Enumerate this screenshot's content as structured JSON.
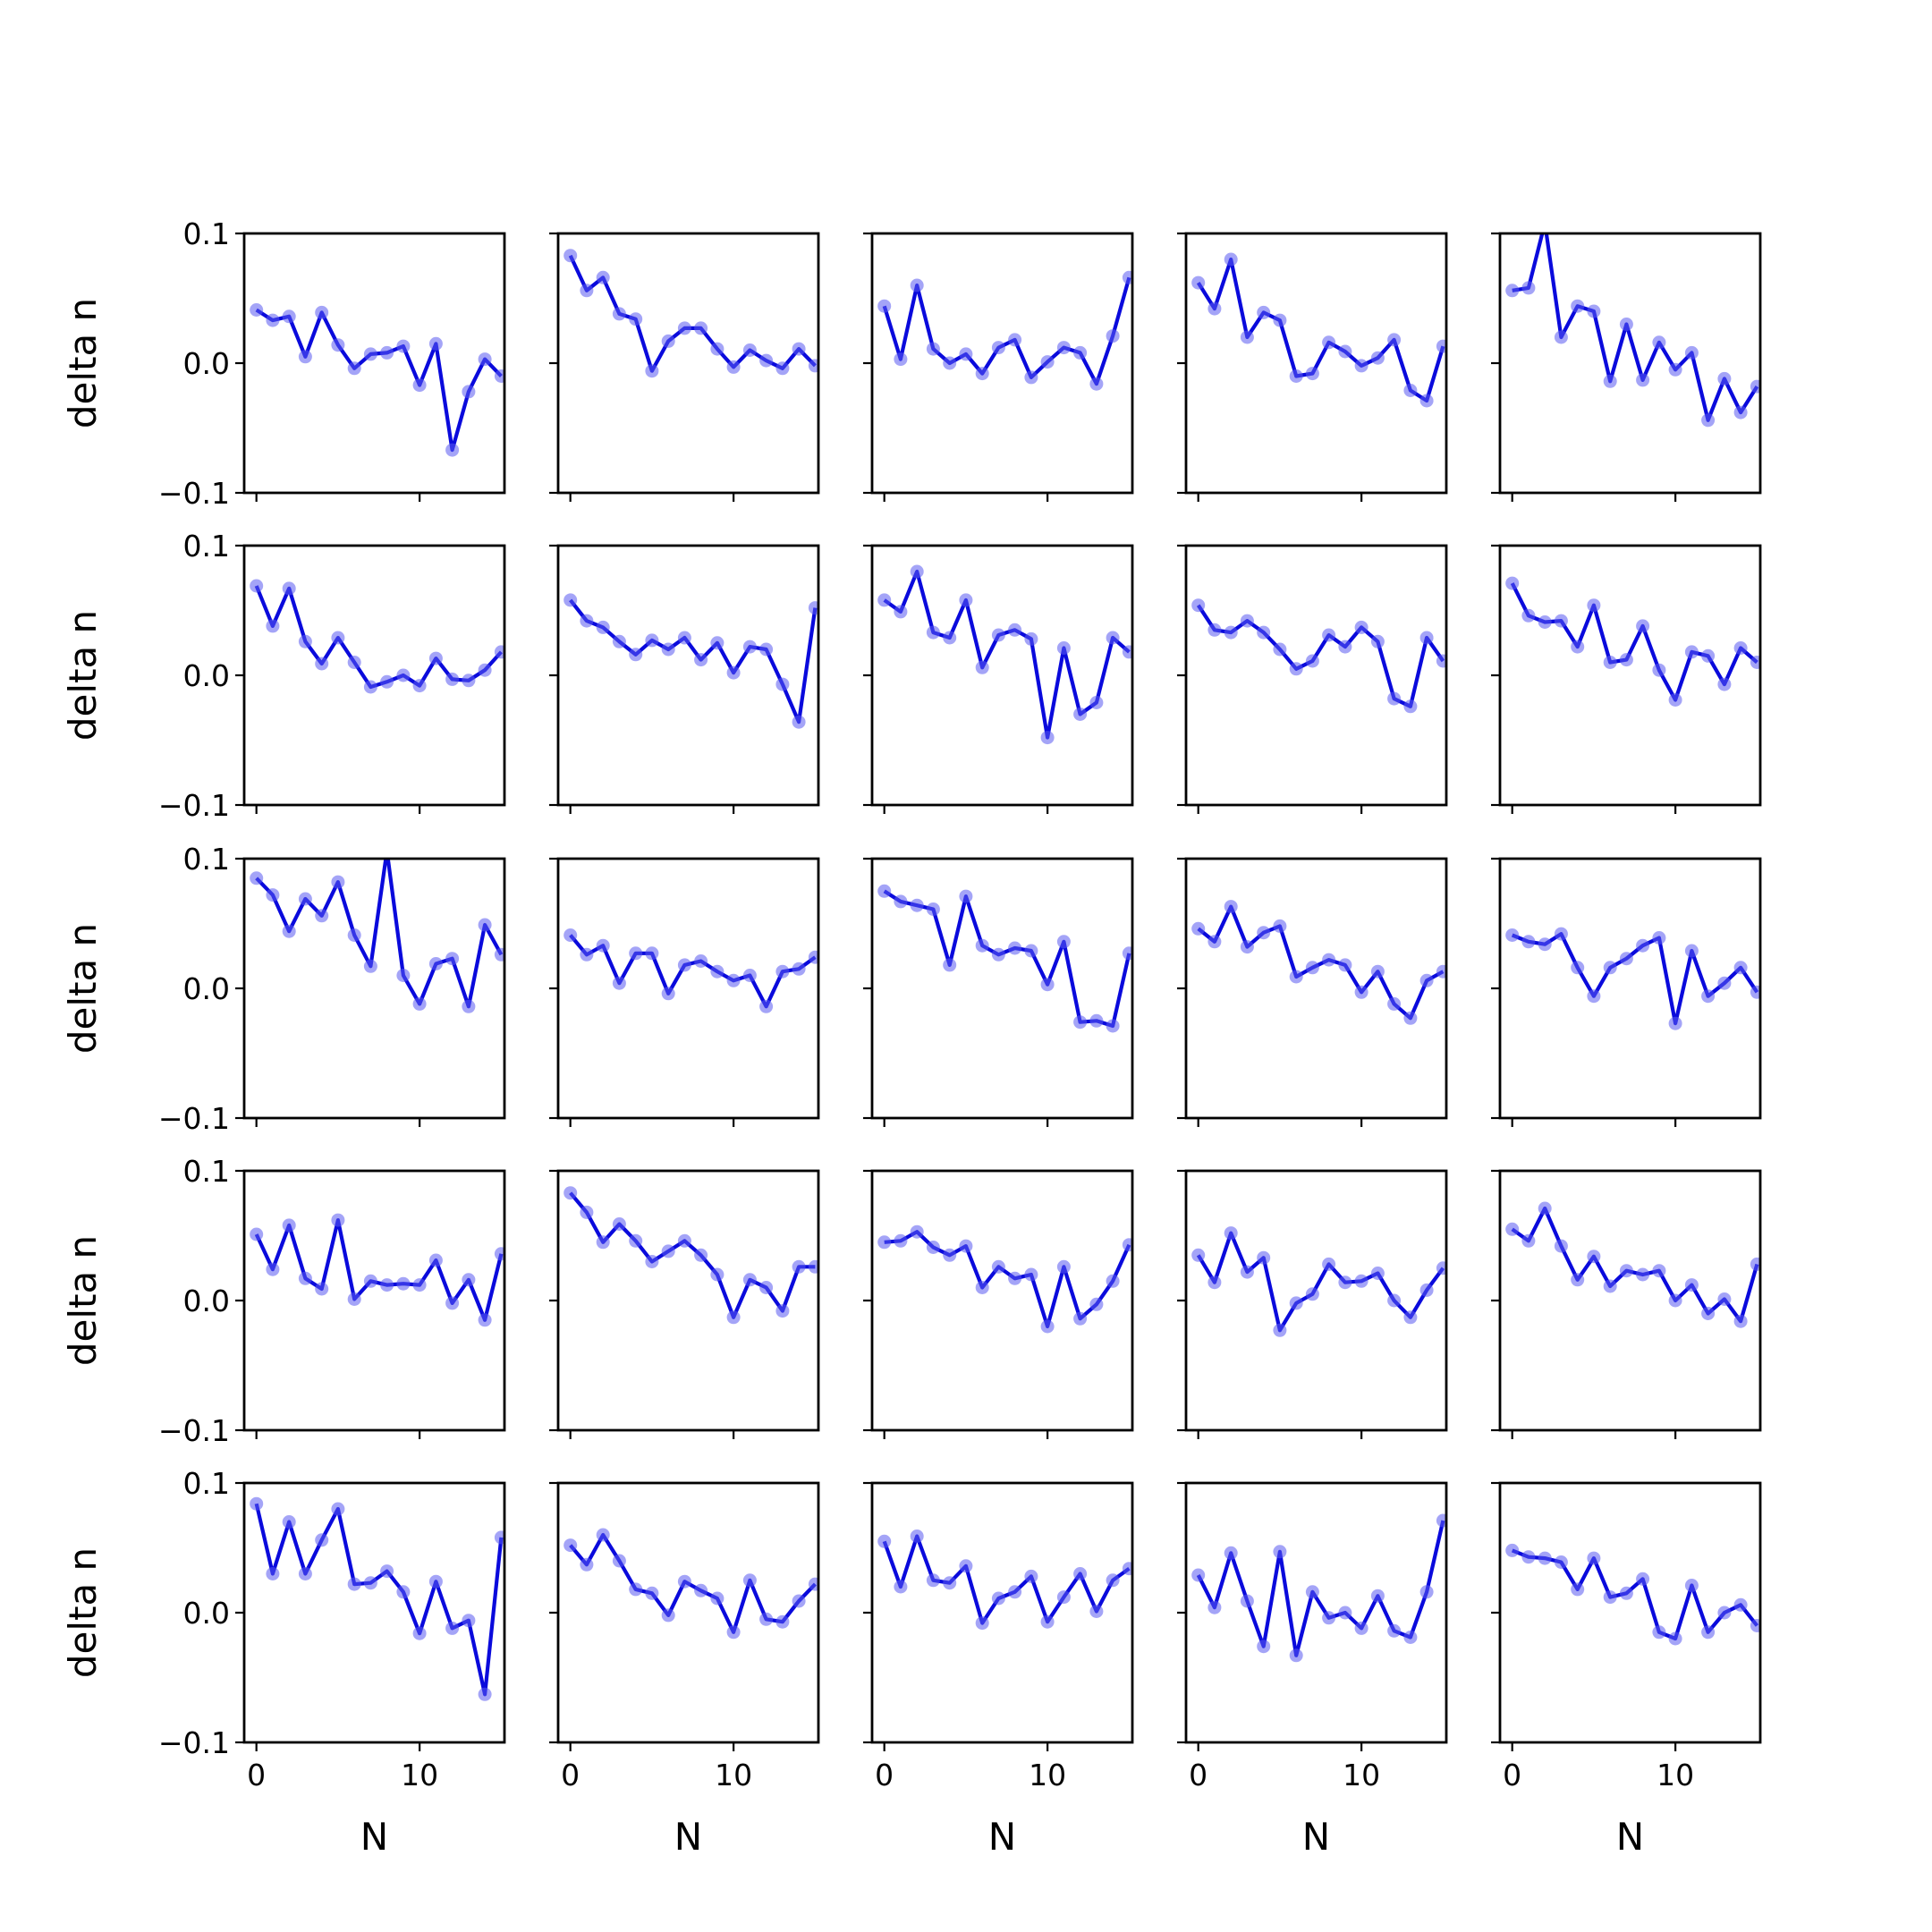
{
  "chart_data": {
    "type": "line",
    "layout": {
      "rows": 5,
      "cols": 5
    },
    "xlabel": "N",
    "ylabel": "delta n",
    "x": [
      0,
      1,
      2,
      3,
      4,
      5,
      6,
      7,
      8,
      9,
      10,
      11,
      12,
      13,
      14,
      15
    ],
    "xlim": [
      -0.75,
      15.2
    ],
    "ylim": [
      -0.1,
      0.1
    ],
    "xticks": [
      0,
      10
    ],
    "yticks": [
      -0.1,
      0.0,
      0.1
    ],
    "yticklabels": [
      "−0.1",
      "0.0",
      "0.1"
    ],
    "xticklabels": [
      "0",
      "10"
    ],
    "line_color": "#0a0adc",
    "marker_color": "#5a5af0",
    "panels": [
      {
        "values": [
          0.041,
          0.033,
          0.036,
          0.005,
          0.039,
          0.014,
          -0.004,
          0.007,
          0.008,
          0.013,
          -0.017,
          0.015,
          -0.067,
          -0.022,
          0.003,
          -0.01
        ]
      },
      {
        "values": [
          0.083,
          0.056,
          0.066,
          0.038,
          0.034,
          -0.006,
          0.017,
          0.027,
          0.027,
          0.011,
          -0.003,
          0.01,
          0.002,
          -0.004,
          0.011,
          -0.002
        ]
      },
      {
        "values": [
          0.044,
          0.003,
          0.06,
          0.011,
          0.0,
          0.007,
          -0.008,
          0.012,
          0.018,
          -0.011,
          0.001,
          0.012,
          0.008,
          -0.016,
          0.021,
          0.066
        ]
      },
      {
        "values": [
          0.062,
          0.042,
          0.08,
          0.02,
          0.039,
          0.033,
          -0.01,
          -0.008,
          0.016,
          0.009,
          -0.002,
          0.004,
          0.018,
          -0.021,
          -0.029,
          0.013
        ]
      },
      {
        "values": [
          0.056,
          0.058,
          0.108,
          0.02,
          0.044,
          0.04,
          -0.014,
          0.03,
          -0.013,
          0.016,
          -0.005,
          0.008,
          -0.044,
          -0.012,
          -0.038,
          -0.018
        ]
      },
      {
        "values": [
          0.069,
          0.038,
          0.067,
          0.026,
          0.009,
          0.029,
          0.01,
          -0.009,
          -0.005,
          0.0,
          -0.008,
          0.013,
          -0.003,
          -0.004,
          0.004,
          0.018
        ]
      },
      {
        "values": [
          0.058,
          0.042,
          0.037,
          0.026,
          0.016,
          0.027,
          0.02,
          0.029,
          0.012,
          0.025,
          0.002,
          0.022,
          0.02,
          -0.007,
          -0.036,
          0.052
        ]
      },
      {
        "values": [
          0.058,
          0.049,
          0.08,
          0.033,
          0.029,
          0.058,
          0.006,
          0.031,
          0.035,
          0.028,
          -0.048,
          0.021,
          -0.03,
          -0.021,
          0.029,
          0.018
        ]
      },
      {
        "values": [
          0.054,
          0.035,
          0.033,
          0.042,
          0.033,
          0.02,
          0.005,
          0.011,
          0.031,
          0.022,
          0.037,
          0.026,
          -0.018,
          -0.024,
          0.029,
          0.011
        ]
      },
      {
        "values": [
          0.071,
          0.046,
          0.041,
          0.042,
          0.022,
          0.054,
          0.01,
          0.012,
          0.038,
          0.004,
          -0.019,
          0.018,
          0.015,
          -0.007,
          0.021,
          0.01
        ]
      },
      {
        "values": [
          0.085,
          0.072,
          0.044,
          0.069,
          0.056,
          0.082,
          0.041,
          0.017,
          0.106,
          0.01,
          -0.012,
          0.019,
          0.023,
          -0.014,
          0.049,
          0.026
        ]
      },
      {
        "values": [
          0.041,
          0.026,
          0.033,
          0.004,
          0.027,
          0.027,
          -0.004,
          0.018,
          0.021,
          0.013,
          0.006,
          0.01,
          -0.014,
          0.013,
          0.015,
          0.024
        ]
      },
      {
        "values": [
          0.075,
          0.067,
          0.064,
          0.061,
          0.018,
          0.071,
          0.033,
          0.026,
          0.031,
          0.029,
          0.003,
          0.036,
          -0.026,
          -0.025,
          -0.029,
          0.027
        ]
      },
      {
        "values": [
          0.046,
          0.036,
          0.063,
          0.032,
          0.043,
          0.048,
          0.009,
          0.016,
          0.022,
          0.018,
          -0.003,
          0.013,
          -0.012,
          -0.023,
          0.006,
          0.013
        ]
      },
      {
        "values": [
          0.041,
          0.036,
          0.034,
          0.042,
          0.016,
          -0.006,
          0.016,
          0.023,
          0.033,
          0.039,
          -0.027,
          0.029,
          -0.006,
          0.004,
          0.016,
          -0.003
        ]
      },
      {
        "values": [
          0.051,
          0.024,
          0.058,
          0.017,
          0.009,
          0.062,
          0.001,
          0.015,
          0.012,
          0.013,
          0.012,
          0.031,
          -0.002,
          0.016,
          -0.015,
          0.036
        ]
      },
      {
        "values": [
          0.083,
          0.068,
          0.045,
          0.059,
          0.046,
          0.03,
          0.038,
          0.046,
          0.035,
          0.02,
          -0.013,
          0.016,
          0.01,
          -0.008,
          0.026,
          0.026
        ]
      },
      {
        "values": [
          0.045,
          0.046,
          0.053,
          0.041,
          0.035,
          0.042,
          0.01,
          0.026,
          0.017,
          0.02,
          -0.02,
          0.026,
          -0.014,
          -0.003,
          0.015,
          0.043
        ]
      },
      {
        "values": [
          0.035,
          0.014,
          0.052,
          0.022,
          0.033,
          -0.023,
          -0.002,
          0.005,
          0.028,
          0.014,
          0.015,
          0.021,
          0.0,
          -0.013,
          0.008,
          0.025
        ]
      },
      {
        "values": [
          0.055,
          0.046,
          0.071,
          0.042,
          0.016,
          0.034,
          0.011,
          0.023,
          0.02,
          0.023,
          0.0,
          0.012,
          -0.01,
          0.001,
          -0.016,
          0.028
        ]
      },
      {
        "values": [
          0.084,
          0.03,
          0.07,
          0.03,
          0.056,
          0.08,
          0.022,
          0.023,
          0.032,
          0.016,
          -0.016,
          0.024,
          -0.012,
          -0.006,
          -0.063,
          0.058
        ]
      },
      {
        "values": [
          0.052,
          0.037,
          0.06,
          0.04,
          0.018,
          0.015,
          -0.002,
          0.024,
          0.017,
          0.011,
          -0.015,
          0.025,
          -0.005,
          -0.007,
          0.009,
          0.022
        ]
      },
      {
        "values": [
          0.055,
          0.02,
          0.059,
          0.025,
          0.023,
          0.036,
          -0.008,
          0.011,
          0.016,
          0.028,
          -0.007,
          0.012,
          0.03,
          0.001,
          0.025,
          0.034
        ]
      },
      {
        "values": [
          0.029,
          0.004,
          0.046,
          0.009,
          -0.026,
          0.047,
          -0.033,
          0.016,
          -0.004,
          0.0,
          -0.012,
          0.013,
          -0.014,
          -0.019,
          0.016,
          0.071
        ]
      },
      {
        "values": [
          0.048,
          0.043,
          0.042,
          0.039,
          0.018,
          0.042,
          0.012,
          0.015,
          0.026,
          -0.015,
          -0.02,
          0.021,
          -0.015,
          0.0,
          0.006,
          -0.01
        ]
      }
    ]
  }
}
